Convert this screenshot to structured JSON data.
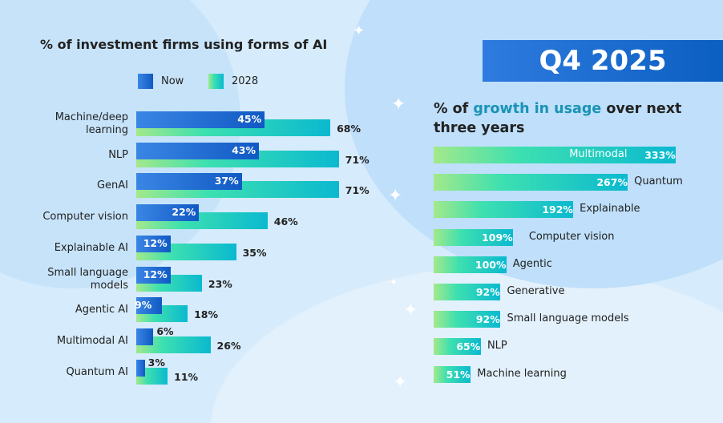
{
  "badge": "Q4 2025",
  "chart_data": [
    {
      "type": "bar",
      "orientation": "horizontal",
      "title": "% of investment firms using forms of AI",
      "categories": [
        "Machine/deep learning",
        "NLP",
        "GenAI",
        "Computer vision",
        "Explainable AI",
        "Small language models",
        "Agentic AI",
        "Multimodal AI",
        "Quantum AI"
      ],
      "series": [
        {
          "name": "Now",
          "values": [
            45,
            43,
            37,
            22,
            12,
            12,
            9,
            6,
            3
          ],
          "color": "#1f6fd6"
        },
        {
          "name": "2028",
          "values": [
            68,
            71,
            71,
            46,
            35,
            23,
            18,
            26,
            11
          ],
          "color": "#2fd6bf"
        }
      ],
      "legend": "top",
      "value_suffix": "%"
    },
    {
      "type": "bar",
      "orientation": "horizontal",
      "title_parts": [
        "% of ",
        "growth in usage",
        " over next three years"
      ],
      "categories": [
        "Multimodal",
        "Quantum",
        "Explainable",
        "Computer vision",
        "Agentic",
        "Generative",
        "Small language models",
        "NLP",
        "Machine learning"
      ],
      "values": [
        333,
        267,
        192,
        109,
        100,
        92,
        92,
        65,
        51
      ],
      "value_suffix": "%",
      "highlight_color": "#1a93b5"
    }
  ]
}
